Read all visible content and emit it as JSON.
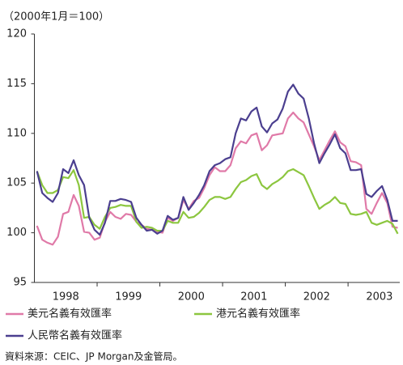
{
  "chart_data": {
    "type": "line",
    "subtitle": "（2000年1月＝100）",
    "categories": [
      null,
      null,
      null,
      null,
      null,
      null,
      "1998",
      null,
      null,
      null,
      null,
      null,
      null,
      null,
      null,
      null,
      null,
      null,
      "1999",
      null,
      null,
      null,
      null,
      null,
      null,
      null,
      null,
      null,
      null,
      null,
      "2000",
      null,
      null,
      null,
      null,
      null,
      null,
      null,
      null,
      null,
      null,
      null,
      "2001",
      null,
      null,
      null,
      null,
      null,
      null,
      null,
      null,
      null,
      null,
      null,
      "2002",
      null,
      null,
      null,
      null,
      null,
      null,
      null,
      null,
      null,
      null,
      null,
      "2003",
      null,
      null,
      null
    ],
    "series": [
      {
        "name": "美元名義有效匯率",
        "color": "#e07aa8",
        "values": [
          100.7,
          99.3,
          99,
          98.8,
          99.6,
          101.9,
          102.1,
          103.8,
          102.7,
          100.1,
          100,
          99.3,
          99.5,
          101.1,
          102.1,
          101.6,
          101.4,
          101.9,
          101.8,
          101.1,
          100.8,
          100.4,
          100.3,
          100.1,
          100,
          101.5,
          101.2,
          101.5,
          103.3,
          102.4,
          103.2,
          103.5,
          104.5,
          105.8,
          106.6,
          106.2,
          106.2,
          106.8,
          108.5,
          109.2,
          109,
          109.8,
          110,
          108.3,
          108.8,
          109.8,
          109.9,
          110,
          111.5,
          112.1,
          111.5,
          111.1,
          109.9,
          108.7,
          107.3,
          108.3,
          109.3,
          110.2,
          109.1,
          108.7,
          107.2,
          107.1,
          106.8,
          102.4,
          101.9,
          103,
          104,
          103,
          100.6,
          100.5
        ]
      },
      {
        "name": "港元名義有效匯率",
        "color": "#8cc63f",
        "values": [
          106.2,
          104.8,
          104,
          104,
          104.3,
          105.6,
          105.5,
          106.3,
          104.8,
          101.5,
          101.6,
          100.8,
          100.4,
          101.6,
          102.5,
          102.6,
          102.8,
          102.7,
          102.7,
          101.1,
          100.5,
          100.6,
          100.5,
          100.2,
          100.2,
          101.2,
          101,
          101,
          102.1,
          101.5,
          101.6,
          102,
          102.6,
          103.3,
          103.6,
          103.6,
          103.4,
          103.6,
          104.4,
          105.1,
          105.3,
          105.7,
          105.9,
          104.8,
          104.4,
          104.9,
          105.2,
          105.6,
          106.2,
          106.4,
          106.1,
          105.8,
          104.7,
          103.5,
          102.4,
          102.8,
          103.1,
          103.6,
          103,
          102.9,
          101.9,
          101.8,
          101.9,
          102.1,
          101,
          100.8,
          101,
          101.2,
          100.9,
          99.9
        ]
      },
      {
        "name": "人民幣名義有效匯率",
        "color": "#4b3f8f",
        "values": [
          106.2,
          104,
          103.5,
          103.1,
          104,
          106.4,
          106,
          107.3,
          105.8,
          104.8,
          101.5,
          100.3,
          99.8,
          101,
          103.2,
          103.2,
          103.4,
          103.3,
          103.1,
          101.5,
          100.8,
          100.2,
          100.3,
          99.9,
          100.2,
          101.7,
          101.3,
          101.5,
          103.6,
          102.3,
          103,
          103.8,
          104.8,
          106.2,
          106.8,
          107,
          107.4,
          107.6,
          110,
          111.5,
          111.3,
          112.2,
          112.6,
          110.7,
          110.1,
          111,
          111.4,
          112.5,
          114.2,
          114.9,
          114,
          113.5,
          111.5,
          109,
          107,
          108,
          108.9,
          109.9,
          108.5,
          108,
          106.3,
          106.3,
          106.4,
          103.9,
          103.6,
          104.2,
          104.7,
          103.3,
          101.2,
          101.2
        ]
      }
    ],
    "ylim": [
      95,
      120
    ],
    "yticks": [
      95,
      100,
      105,
      110,
      115,
      120
    ],
    "grid": false,
    "source": "資料來源：CEIC、JP Morgan及金管局。"
  }
}
